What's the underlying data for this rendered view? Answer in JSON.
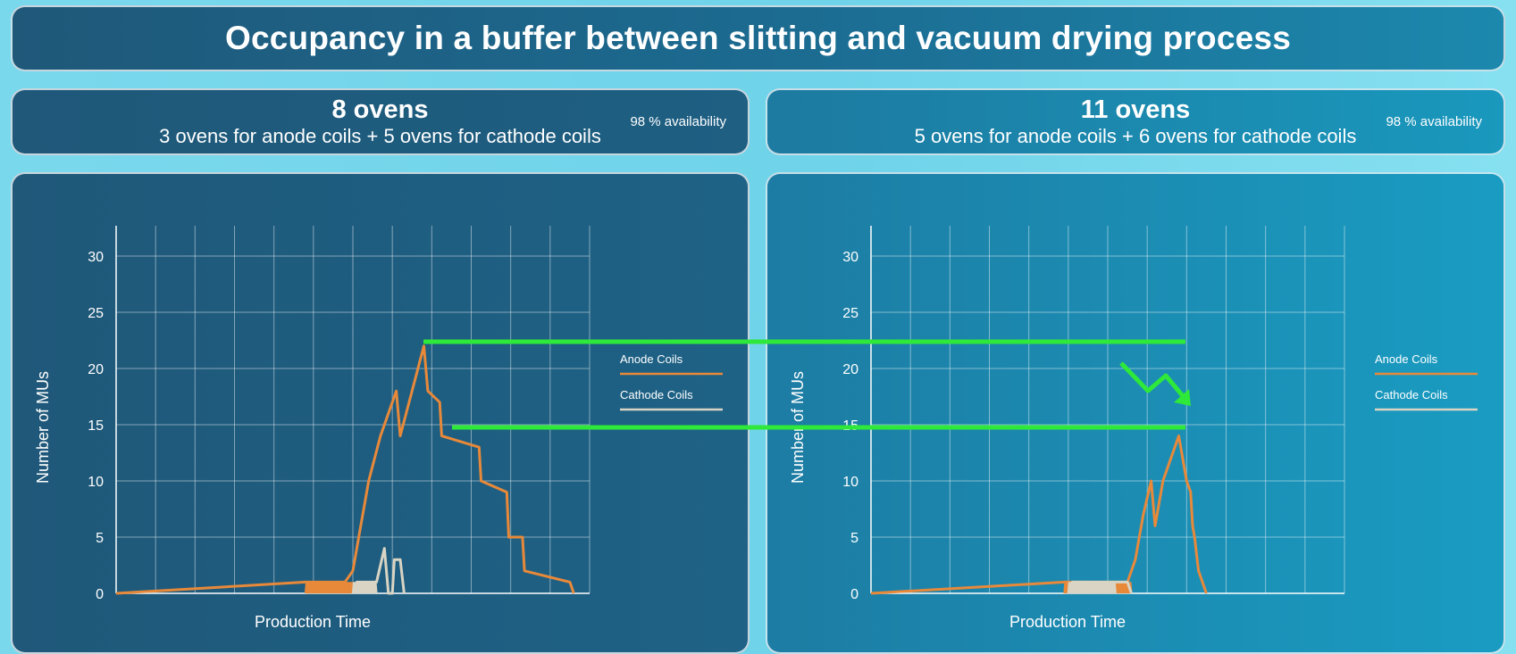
{
  "title": "Occupancy in a buffer between slitting and vacuum drying process",
  "panels": [
    {
      "heading": "8 ovens",
      "subheading": "3 ovens for anode coils + 5 ovens for cathode coils",
      "availability": "98 % availability"
    },
    {
      "heading": "11 ovens",
      "subheading": "5 ovens for anode coils + 6 ovens for cathode coils",
      "availability": "98 % availability"
    }
  ],
  "colors": {
    "anode": "#e8893a",
    "cathode": "#d9d4c3",
    "annotation": "#2ee83a",
    "grid": "rgba(255,255,255,0.45)"
  },
  "chart_data": [
    {
      "type": "line",
      "title": "8 ovens",
      "xlabel": "Production Time",
      "ylabel": "Number of MUs",
      "xlim": [
        0,
        120
      ],
      "ylim": [
        0,
        30
      ],
      "yticks": [
        0,
        5,
        10,
        15,
        20,
        25,
        30
      ],
      "x_tick_labels": false,
      "grid": true,
      "legend_placement": "right",
      "series": [
        {
          "name": "Anode Coils",
          "color": "#e8893a",
          "points": [
            [
              0,
              0
            ],
            [
              48,
              1
            ],
            [
              58,
              1
            ],
            [
              60,
              2
            ],
            [
              61,
              4
            ],
            [
              62,
              6
            ],
            [
              63,
              8
            ],
            [
              64,
              10
            ],
            [
              67,
              14
            ],
            [
              71,
              18
            ],
            [
              72,
              14
            ],
            [
              78,
              22
            ],
            [
              79,
              18
            ],
            [
              82,
              17
            ],
            [
              82.5,
              14
            ],
            [
              92,
              13
            ],
            [
              92.5,
              10
            ],
            [
              99,
              9
            ],
            [
              99.5,
              5
            ],
            [
              103,
              5
            ],
            [
              103.5,
              2
            ],
            [
              115,
              1
            ],
            [
              116,
              0
            ]
          ],
          "noise_range": [
            48,
            60
          ]
        },
        {
          "name": "Cathode Coils",
          "color": "#d9d4c3",
          "points": [
            [
              60,
              0
            ],
            [
              61,
              1
            ],
            [
              65,
              1
            ],
            [
              66,
              1
            ],
            [
              68,
              4
            ],
            [
              69,
              0
            ],
            [
              70,
              0
            ],
            [
              70.5,
              3
            ],
            [
              72,
              3
            ],
            [
              73,
              0
            ]
          ],
          "noise_range": [
            60,
            66
          ]
        }
      ]
    },
    {
      "type": "line",
      "title": "11 ovens",
      "xlabel": "Production Time",
      "ylabel": "Number of MUs",
      "xlim": [
        0,
        120
      ],
      "ylim": [
        0,
        30
      ],
      "yticks": [
        0,
        5,
        10,
        15,
        20,
        25,
        30
      ],
      "x_tick_labels": false,
      "grid": true,
      "legend_placement": "right",
      "series": [
        {
          "name": "Anode Coils",
          "color": "#e8893a",
          "points": [
            [
              0,
              0
            ],
            [
              49,
              1
            ],
            [
              65,
              1
            ],
            [
              67,
              3
            ],
            [
              68,
              5
            ],
            [
              69,
              7
            ],
            [
              71,
              10
            ],
            [
              72,
              6
            ],
            [
              74,
              10
            ],
            [
              78,
              14
            ],
            [
              80,
              10
            ],
            [
              81,
              9
            ],
            [
              81.5,
              6
            ],
            [
              82,
              5
            ],
            [
              83,
              2
            ],
            [
              84,
              1
            ],
            [
              85,
              0
            ]
          ],
          "noise_range": [
            49,
            66
          ]
        },
        {
          "name": "Cathode Coils",
          "color": "#d9d4c3",
          "points": [
            [
              50,
              0
            ],
            [
              51,
              1
            ],
            [
              64,
              1
            ],
            [
              65,
              1
            ],
            [
              66,
              0
            ]
          ],
          "noise_range": [
            50,
            62
          ]
        }
      ]
    }
  ]
}
